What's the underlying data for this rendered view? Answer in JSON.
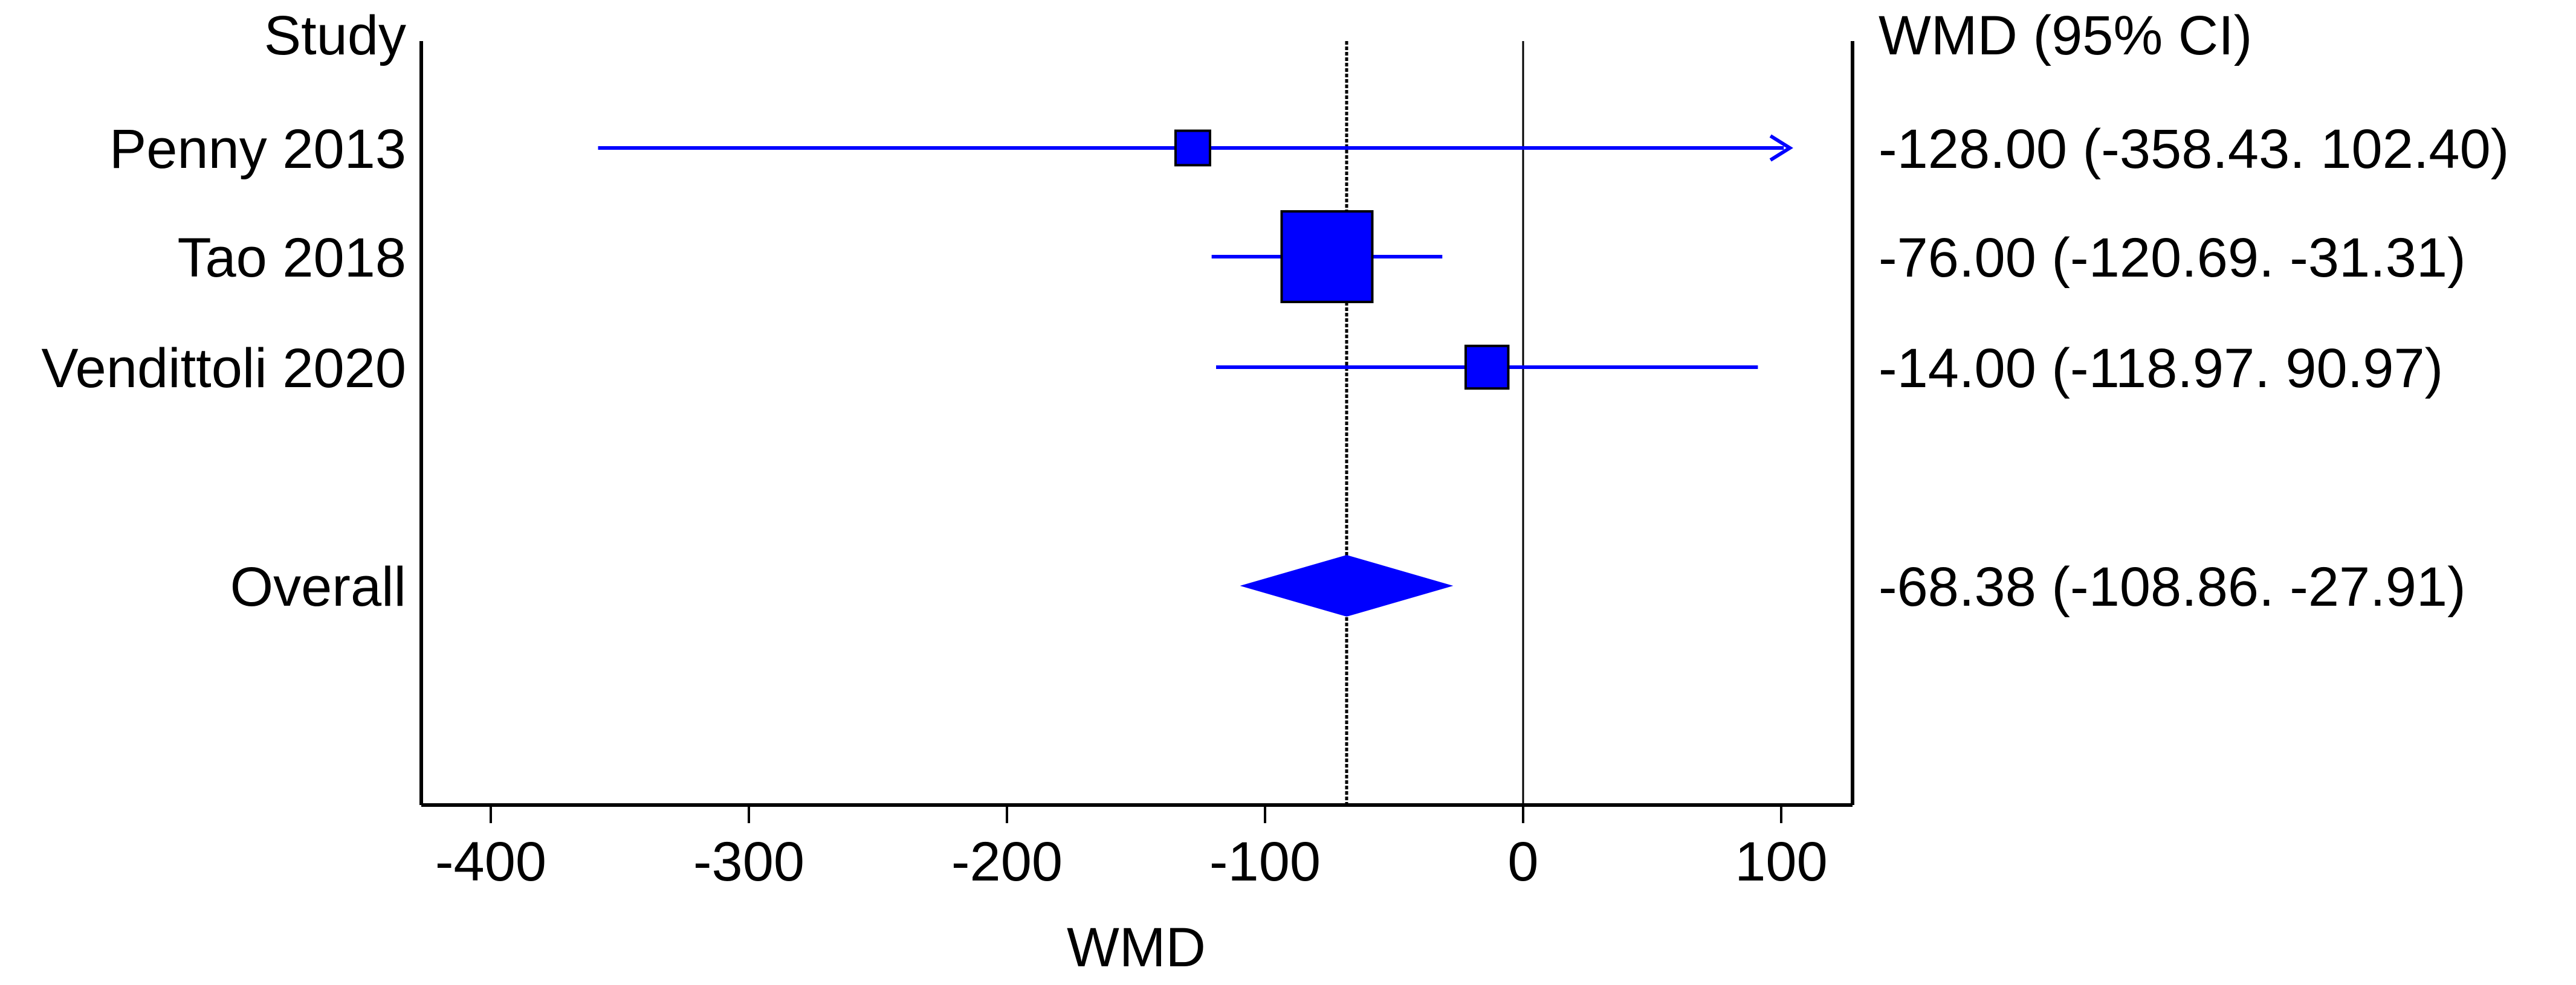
{
  "chart_data": {
    "type": "forest",
    "left_header": "Study",
    "right_header": "WMD (95% CI)",
    "xlabel": "WMD",
    "xlim": [
      -425,
      125
    ],
    "x_ticks": [
      -400,
      -300,
      -200,
      -100,
      0,
      100
    ],
    "x_tick_labels": [
      "-400",
      "-300",
      "-200",
      "-100",
      "0",
      "100"
    ],
    "null_line": 0,
    "pooled_line": -68.38,
    "studies": [
      {
        "name": "Penny 2013",
        "estimate": -128.0,
        "lower": -358.43,
        "upper": 102.4,
        "label": "-128.00 (-358.43. 102.40)",
        "weight_rel": 0.38,
        "arrow_right": true
      },
      {
        "name": "Tao 2018",
        "estimate": -76.0,
        "lower": -120.69,
        "upper": -31.31,
        "label": "-76.00 (-120.69. -31.31)",
        "weight_rel": 1.0,
        "arrow_right": false
      },
      {
        "name": "Vendittoli 2020",
        "estimate": -14.0,
        "lower": -118.97,
        "upper": 90.97,
        "label": "-14.00 (-118.97. 90.97)",
        "weight_rel": 0.47,
        "arrow_right": false
      }
    ],
    "overall": {
      "name": "Overall",
      "estimate": -68.38,
      "lower": -108.86,
      "upper": -27.91,
      "label": "-68.38 (-108.86. -27.91)"
    },
    "colors": {
      "marker": "#0000ff",
      "marker_outline": "#000000",
      "axis": "#000000"
    }
  }
}
